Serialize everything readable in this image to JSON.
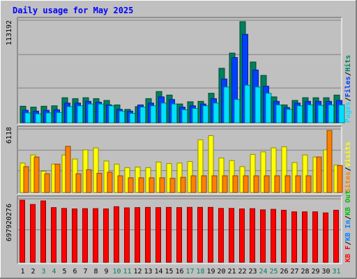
{
  "title": "Daily usage for May 2025",
  "colors": {
    "background": "#c0c0c0",
    "hits": "#00805c",
    "files": "#0040ff",
    "pages": "#00e0ff",
    "visits": "#ffff00",
    "sites": "#ff8000",
    "kbin": "#0080ff",
    "kbout": "#00c000",
    "kbf": "#ff0000",
    "title_text": "#0000ff",
    "weekend_day": "#00805c"
  },
  "chart_data": [
    {
      "type": "bar",
      "name": "Hits / Files / Pages",
      "categories": [
        "1",
        "2",
        "3",
        "4",
        "5",
        "6",
        "7",
        "8",
        "9",
        "10",
        "11",
        "12",
        "13",
        "14",
        "15",
        "16",
        "17",
        "18",
        "19",
        "20",
        "21",
        "22",
        "23",
        "24",
        "25",
        "26",
        "27",
        "28",
        "29",
        "30",
        "31"
      ],
      "ymax_label": "113192",
      "ylim": [
        0,
        113192
      ],
      "legend": [
        {
          "label": "Pages",
          "color": "#00e0ff"
        },
        {
          "label": "/",
          "color": "#000000"
        },
        {
          "label": "Files",
          "color": "#0040ff"
        },
        {
          "label": "/",
          "color": "#000000"
        },
        {
          "label": "Hits",
          "color": "#00805c"
        }
      ],
      "series": [
        {
          "name": "Hits",
          "color": "#00805c",
          "values": [
            18500,
            17500,
            18500,
            19000,
            28000,
            27000,
            28000,
            27000,
            25000,
            20000,
            15000,
            18000,
            27000,
            35000,
            31000,
            21000,
            23500,
            24000,
            33000,
            61000,
            78000,
            113192,
            68000,
            53000,
            29000,
            20000,
            25000,
            28000,
            28000,
            28000,
            31000
          ]
        },
        {
          "name": "Files",
          "color": "#0040ff",
          "values": [
            14000,
            13000,
            14000,
            14500,
            22000,
            22000,
            24000,
            23000,
            20000,
            15000,
            13000,
            20000,
            22000,
            29000,
            26000,
            17500,
            19000,
            21000,
            27000,
            49000,
            73000,
            99000,
            59000,
            41000,
            24000,
            17000,
            22000,
            24000,
            24000,
            24000,
            25000
          ]
        },
        {
          "name": "Pages",
          "color": "#00e0ff",
          "values": [
            11000,
            10000,
            11000,
            11500,
            18000,
            19000,
            21000,
            21000,
            19000,
            13000,
            10500,
            17500,
            19000,
            22000,
            21000,
            14500,
            16000,
            19000,
            22000,
            40000,
            26000,
            42000,
            40000,
            33000,
            20000,
            15000,
            19000,
            20000,
            19500,
            20000,
            20000
          ]
        }
      ]
    },
    {
      "type": "bar",
      "name": "Visits / Sites",
      "categories": [
        "1",
        "2",
        "3",
        "4",
        "5",
        "6",
        "7",
        "8",
        "9",
        "10",
        "11",
        "12",
        "13",
        "14",
        "15",
        "16",
        "17",
        "18",
        "19",
        "20",
        "21",
        "22",
        "23",
        "24",
        "25",
        "26",
        "27",
        "28",
        "29",
        "30",
        "31"
      ],
      "ymax_label": "6118",
      "ylim": [
        0,
        6118
      ],
      "legend": [
        {
          "label": "Sites",
          "color": "#ff8000"
        },
        {
          "label": "/",
          "color": "#000000"
        },
        {
          "label": "Visits",
          "color": "#ffff00"
        }
      ],
      "series": [
        {
          "name": "Visits",
          "color": "#ffff00",
          "values": [
            2900,
            3700,
            2100,
            2800,
            3700,
            3300,
            4200,
            4400,
            3100,
            2800,
            2450,
            2500,
            2450,
            3000,
            2850,
            2900,
            3050,
            5200,
            5600,
            3400,
            3150,
            2550,
            3750,
            4000,
            4400,
            4500,
            2950,
            3700,
            3500,
            4200,
            2700
          ]
        },
        {
          "name": "Sites",
          "color": "#ff8000",
          "values": [
            2550,
            3500,
            1850,
            2800,
            4550,
            1850,
            2250,
            1900,
            2000,
            1650,
            1450,
            1450,
            1450,
            1450,
            1400,
            1500,
            1650,
            1650,
            1650,
            1650,
            1650,
            1650,
            1650,
            1650,
            1650,
            1650,
            1650,
            1650,
            3500,
            6118,
            2650
          ]
        }
      ]
    },
    {
      "type": "bar",
      "name": "KBytes F",
      "categories": [
        "1",
        "2",
        "3",
        "4",
        "5",
        "6",
        "7",
        "8",
        "9",
        "10",
        "11",
        "12",
        "13",
        "14",
        "15",
        "16",
        "17",
        "18",
        "19",
        "20",
        "21",
        "22",
        "23",
        "24",
        "25",
        "26",
        "27",
        "28",
        "29",
        "30",
        "31"
      ],
      "ymax_label": "697920276",
      "ylim": [
        0,
        697920276
      ],
      "legend": [
        {
          "label": "KB F",
          "color": "#ff0000"
        },
        {
          "label": "/",
          "color": "#000000"
        },
        {
          "label": "KB In",
          "color": "#0080ff"
        },
        {
          "label": "/",
          "color": "#000000"
        },
        {
          "label": "KB Out",
          "color": "#00c000"
        }
      ],
      "series": [
        {
          "name": "KB F",
          "color": "#ff0000",
          "values": [
            697920276,
            650000000,
            690000000,
            615000000,
            605000000,
            600000000,
            603000000,
            603000000,
            600000000,
            625000000,
            612000000,
            615000000,
            617000000,
            615000000,
            617000000,
            615000000,
            617000000,
            617000000,
            617000000,
            605000000,
            605000000,
            600000000,
            603000000,
            590000000,
            595000000,
            585000000,
            567000000,
            567000000,
            567000000,
            555000000,
            585000000
          ]
        }
      ]
    }
  ]
}
